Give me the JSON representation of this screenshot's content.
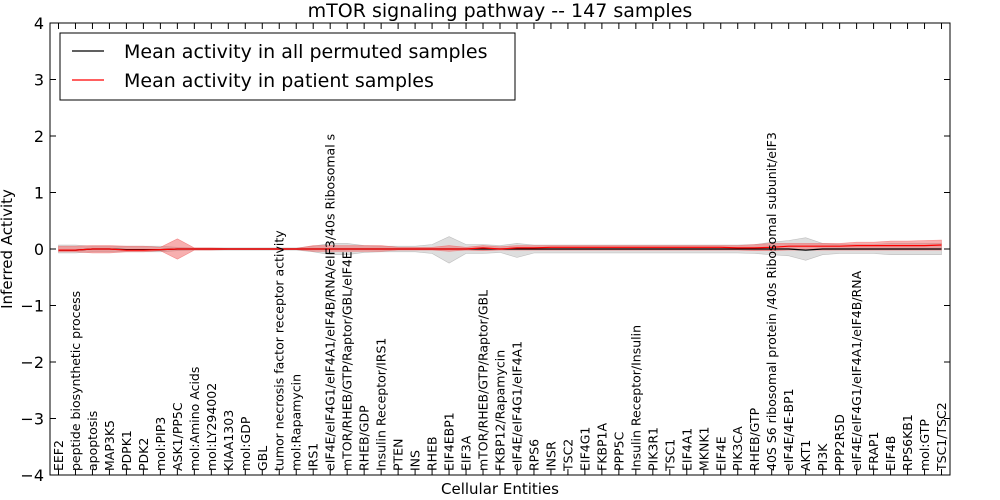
{
  "chart_data": {
    "type": "line",
    "title": "mTOR signaling pathway -- 147 samples",
    "xlabel": "Cellular Entities",
    "ylabel": "Inferred Activity",
    "ylim": [
      -4,
      4
    ],
    "yticks": [
      4,
      3,
      2,
      1,
      0,
      -1,
      -2,
      -3,
      -4
    ],
    "ytick_labels": [
      "4",
      "3",
      "2",
      "1",
      "0",
      "−1",
      "−2",
      "−3",
      "−4"
    ],
    "legend_position": "upper-left",
    "grid": false,
    "categories": [
      "EEF2",
      "peptide biosynthetic process",
      "apoptosis",
      "MAP3K5",
      "PDPK1",
      "PDK2",
      "mol:PIP3",
      "ASK1/PP5C",
      "mol:Amino Acids",
      "mol:LY294002",
      "KIAA1303",
      "mol:GDP",
      "GBL",
      "tumor necrosis factor receptor activity",
      "mol:Rapamycin",
      "IRS1",
      "eIF4E/eIF4G1/eIF4A1/eIF4B/RNA/eIF3/40s Ribosomal s",
      "mTOR/RHEB/GTP/Raptor/GBL/eIF4E",
      "RHEB/GDP",
      "Insulin Receptor/IRS1",
      "PTEN",
      "INS",
      "RHEB",
      "EIF4EBP1",
      "EIF3A",
      "mTOR/RHEB/GTP/Raptor/GBL",
      "FKBP12/Rapamycin",
      "eIF4E/eIF4G1/eIF4A1",
      "RPS6",
      "INSR",
      "TSC2",
      "EIF4G1",
      "FKBP1A",
      "PPP5C",
      "Insulin Receptor/Insulin",
      "PIK3R1",
      "TSC1",
      "EIF4A1",
      "MKNK1",
      "EIF4E",
      "PIK3CA",
      "RHEB/GTP",
      "40S S6 ribosomal protein /40s Ribosomal subunit/eIF3",
      "eIF4E/4E-BP1",
      "AKT1",
      "PI3K",
      "PPP2R5D",
      "eIF4E/eIF4G1/eIF4A1/eIF4B/RNA",
      "FRAP1",
      "EIF4B",
      "RPS6KB1",
      "mol:GTP",
      "TSC1/TSC2"
    ],
    "series": [
      {
        "name": "Mean activity in all permuted samples",
        "color": "#000000",
        "band_color": "#a0a0a0",
        "values": [
          -0.02,
          -0.02,
          0.0,
          0.0,
          -0.01,
          -0.01,
          -0.01,
          0.0,
          0.0,
          0.0,
          0.0,
          0.0,
          0.0,
          0.0,
          0.0,
          0.0,
          0.0,
          0.0,
          0.0,
          0.0,
          0.0,
          0.0,
          0.0,
          0.0,
          0.0,
          0.0,
          0.0,
          0.0,
          0.0,
          0.0,
          0.0,
          0.0,
          0.0,
          0.0,
          0.0,
          0.0,
          0.0,
          0.0,
          0.0,
          0.0,
          0.0,
          0.0,
          0.0,
          0.0,
          -0.02,
          0.0,
          0.0,
          0.0,
          0.0,
          0.0,
          0.0,
          0.0,
          0.0
        ],
        "lower": [
          -0.07,
          -0.07,
          -0.05,
          -0.05,
          -0.05,
          -0.05,
          -0.05,
          -0.03,
          -0.02,
          -0.02,
          -0.02,
          -0.02,
          -0.02,
          -0.02,
          -0.02,
          -0.05,
          -0.1,
          -0.1,
          -0.06,
          -0.05,
          -0.05,
          -0.05,
          -0.08,
          -0.25,
          -0.08,
          -0.08,
          -0.06,
          -0.15,
          -0.07,
          -0.07,
          -0.07,
          -0.07,
          -0.07,
          -0.07,
          -0.07,
          -0.07,
          -0.07,
          -0.07,
          -0.07,
          -0.07,
          -0.07,
          -0.08,
          -0.1,
          -0.12,
          -0.2,
          -0.1,
          -0.08,
          -0.08,
          -0.08,
          -0.1,
          -0.1,
          -0.1,
          -0.1
        ],
        "upper": [
          0.07,
          0.07,
          0.05,
          0.05,
          0.05,
          0.05,
          0.05,
          0.03,
          0.02,
          0.02,
          0.02,
          0.02,
          0.02,
          0.02,
          0.02,
          0.05,
          0.1,
          0.1,
          0.06,
          0.05,
          0.05,
          0.05,
          0.08,
          0.22,
          0.08,
          0.08,
          0.06,
          0.1,
          0.07,
          0.07,
          0.07,
          0.07,
          0.07,
          0.07,
          0.07,
          0.07,
          0.07,
          0.07,
          0.07,
          0.07,
          0.07,
          0.08,
          0.12,
          0.15,
          0.2,
          0.1,
          0.08,
          0.08,
          0.08,
          0.1,
          0.1,
          0.1,
          0.1
        ]
      },
      {
        "name": "Mean activity in patient samples",
        "color": "#ff0000",
        "band_color": "#f06060",
        "values": [
          -0.02,
          -0.02,
          0.0,
          0.0,
          -0.02,
          -0.02,
          -0.01,
          0.0,
          0.0,
          0.0,
          0.0,
          0.0,
          0.0,
          0.0,
          0.0,
          0.0,
          0.0,
          0.0,
          0.0,
          0.0,
          0.0,
          0.0,
          0.0,
          0.0,
          0.0,
          0.02,
          0.0,
          0.02,
          0.02,
          0.03,
          0.03,
          0.03,
          0.03,
          0.03,
          0.03,
          0.03,
          0.03,
          0.03,
          0.03,
          0.03,
          0.02,
          0.02,
          0.03,
          0.05,
          0.05,
          0.05,
          0.05,
          0.06,
          0.06,
          0.06,
          0.06,
          0.06,
          0.07
        ],
        "lower": [
          -0.05,
          -0.05,
          -0.07,
          -0.07,
          -0.05,
          -0.05,
          -0.03,
          -0.18,
          -0.02,
          -0.02,
          -0.01,
          -0.01,
          -0.01,
          -0.01,
          -0.01,
          -0.04,
          -0.04,
          -0.04,
          -0.04,
          -0.04,
          -0.02,
          -0.02,
          -0.02,
          -0.04,
          -0.02,
          -0.03,
          -0.02,
          -0.02,
          -0.02,
          -0.02,
          -0.02,
          -0.02,
          -0.02,
          -0.02,
          -0.02,
          -0.02,
          -0.02,
          -0.02,
          -0.02,
          -0.02,
          -0.02,
          -0.03,
          -0.03,
          -0.02,
          -0.02,
          -0.02,
          -0.02,
          -0.02,
          -0.02,
          -0.02,
          -0.02,
          -0.02,
          -0.02
        ],
        "upper": [
          0.05,
          0.05,
          0.06,
          0.06,
          0.05,
          0.05,
          0.03,
          0.18,
          0.02,
          0.02,
          0.01,
          0.01,
          0.01,
          0.01,
          0.01,
          0.06,
          0.06,
          0.06,
          0.06,
          0.06,
          0.03,
          0.03,
          0.03,
          0.06,
          0.03,
          0.06,
          0.04,
          0.06,
          0.06,
          0.06,
          0.06,
          0.06,
          0.06,
          0.06,
          0.06,
          0.06,
          0.06,
          0.06,
          0.06,
          0.06,
          0.06,
          0.08,
          0.1,
          0.1,
          0.1,
          0.1,
          0.1,
          0.12,
          0.12,
          0.14,
          0.14,
          0.15,
          0.16
        ]
      }
    ]
  }
}
